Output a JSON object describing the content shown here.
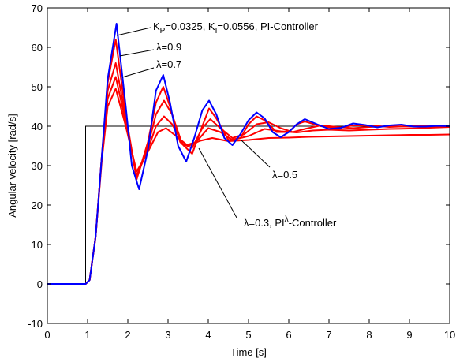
{
  "chart_data": {
    "type": "line",
    "xlabel": "Time [s]",
    "ylabel": "Angular velocity [rad/s]",
    "xlim": [
      0,
      10
    ],
    "ylim": [
      -10,
      70
    ],
    "xticks": [
      "0",
      "1",
      "2",
      "3",
      "4",
      "5",
      "6",
      "7",
      "8",
      "9",
      "10"
    ],
    "yticks": [
      "-10",
      "0",
      "10",
      "20",
      "30",
      "40",
      "50",
      "60",
      "70"
    ],
    "grid": false,
    "reference": {
      "color": "#000000",
      "x": [
        0,
        0.95,
        0.95,
        10
      ],
      "y": [
        0,
        0,
        40,
        40
      ]
    },
    "series": [
      {
        "color": "#0000ff",
        "x": [
          0,
          0.95,
          1.05,
          1.2,
          1.35,
          1.5,
          1.72,
          1.95,
          2.1,
          2.28,
          2.5,
          2.7,
          2.88,
          3.05,
          3.25,
          3.45,
          3.65,
          3.85,
          4.02,
          4.2,
          4.4,
          4.6,
          4.8,
          5.0,
          5.2,
          5.4,
          5.6,
          5.8,
          6.0,
          6.2,
          6.4,
          6.7,
          7.0,
          7.3,
          7.6,
          7.9,
          8.2,
          8.5,
          8.8,
          9.1,
          9.4,
          9.7,
          10
        ],
        "y": [
          0,
          0,
          1,
          12,
          32,
          52,
          66,
          45,
          30,
          24,
          34,
          49,
          53,
          46,
          35,
          31,
          37,
          44,
          46.5,
          43,
          37,
          35.2,
          38,
          41.5,
          43.5,
          42,
          38.5,
          37.2,
          38.5,
          40.5,
          41.8,
          40.5,
          39.3,
          39.6,
          40.7,
          40.3,
          39.7,
          40.2,
          40.4,
          39.9,
          39.9,
          40.1,
          40
        ]
      },
      {
        "color": "#ff0000",
        "x": [
          0,
          0.95,
          1.05,
          1.2,
          1.35,
          1.5,
          1.7,
          1.95,
          2.22,
          2.5,
          2.7,
          2.88,
          3.05,
          3.3,
          3.6,
          3.85,
          4.02,
          4.2,
          4.5,
          4.8,
          5.0,
          5.2,
          5.4,
          5.7,
          6.0,
          6.2,
          6.4,
          6.8,
          7.2,
          7.6,
          8.0,
          8.5,
          9.0,
          9.5,
          10
        ],
        "y": [
          0,
          0,
          1,
          12,
          32,
          51,
          62,
          43,
          26.5,
          36,
          46,
          50,
          45,
          36,
          33,
          40,
          44.5,
          42,
          36.5,
          37,
          40.5,
          42.5,
          41.5,
          38.5,
          38.5,
          40.5,
          41.2,
          40,
          39.5,
          40.2,
          40.2,
          39.8,
          40,
          40.1,
          40
        ]
      },
      {
        "color": "#ff0000",
        "x": [
          0,
          0.95,
          1.05,
          1.2,
          1.35,
          1.5,
          1.7,
          1.95,
          2.22,
          2.5,
          2.7,
          2.9,
          3.1,
          3.35,
          3.6,
          3.85,
          4.05,
          4.3,
          4.6,
          4.9,
          5.2,
          5.5,
          5.8,
          6.1,
          6.4,
          6.8,
          7.2,
          7.6,
          8.0,
          8.5,
          9.0,
          9.5,
          10
        ],
        "y": [
          0,
          0,
          1,
          12,
          32,
          49,
          56,
          42,
          26.8,
          35,
          43,
          46.5,
          43,
          35.5,
          34.5,
          39.5,
          41.8,
          39.5,
          37,
          38,
          40.5,
          41,
          39.5,
          38.5,
          39.3,
          40.2,
          39.8,
          39.5,
          39.8,
          40,
          39.9,
          40,
          40
        ]
      },
      {
        "color": "#ff0000",
        "x": [
          0,
          0.95,
          1.05,
          1.2,
          1.35,
          1.5,
          1.7,
          1.95,
          2.22,
          2.5,
          2.7,
          2.9,
          3.1,
          3.4,
          3.7,
          4.0,
          4.3,
          4.6,
          5.0,
          5.4,
          5.8,
          6.2,
          6.6,
          7.0,
          7.5,
          8.0,
          8.5,
          9.0,
          9.5,
          10
        ],
        "y": [
          0,
          0,
          1,
          12,
          32,
          47,
          52.5,
          41,
          27.5,
          34,
          40,
          42.5,
          40.5,
          35,
          36,
          39.5,
          38.5,
          36.5,
          37.5,
          39.3,
          38.7,
          38.4,
          38.9,
          39.1,
          38.9,
          39.1,
          39.3,
          39.4,
          39.6,
          39.8
        ]
      },
      {
        "color": "#ff0000",
        "x": [
          0,
          0.95,
          1.05,
          1.2,
          1.35,
          1.5,
          1.7,
          1.95,
          2.22,
          2.5,
          2.75,
          2.95,
          3.2,
          3.5,
          3.8,
          4.1,
          4.5,
          5.0,
          5.5,
          6.0,
          6.5,
          7.0,
          7.5,
          8.0,
          8.5,
          9.0,
          9.5,
          10
        ],
        "y": [
          0,
          0,
          1,
          12,
          31,
          45,
          49.5,
          40,
          28.5,
          33.5,
          38.5,
          39.5,
          37.5,
          35,
          36.3,
          37,
          36.2,
          36.5,
          37,
          37.1,
          37.3,
          37.4,
          37.5,
          37.6,
          37.7,
          37.8,
          37.8,
          37.9
        ]
      }
    ],
    "annotations": [
      {
        "before": "K",
        "sub1": "P",
        "mid": "=0.0325, K",
        "sub2": "I",
        "after": "=0.0556, PI-Controller"
      },
      {
        "text": "λ=0.9"
      },
      {
        "text": "λ=0.7"
      },
      {
        "text": "λ=0.5"
      },
      {
        "before": "λ=0.3, PI",
        "sup": "λ",
        "after": "-Controller"
      }
    ]
  }
}
